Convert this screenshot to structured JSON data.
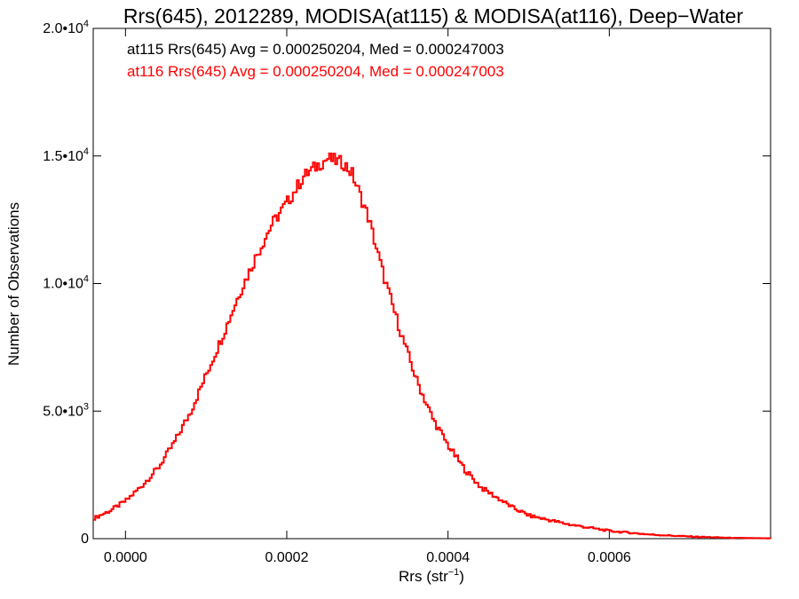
{
  "chart_data": {
    "type": "histogram-step",
    "title": "Rrs(645), 2012289, MODISA(at115) & MODISA(at116), Deep−Water",
    "xlabel_main": "Rrs (str",
    "xlabel_sup": "−1",
    "xlabel_end": ")",
    "ylabel": "Number of Observations",
    "xlim": [
      -4e-05,
      0.0008
    ],
    "ylim": [
      0,
      20000
    ],
    "x_ticks": [
      {
        "value": 0.0,
        "label": "0.0000"
      },
      {
        "value": 0.0002,
        "label": "0.0002"
      },
      {
        "value": 0.0004,
        "label": "0.0004"
      },
      {
        "value": 0.0006,
        "label": "0.0006"
      }
    ],
    "y_ticks": [
      {
        "value": 0,
        "label": "0",
        "sup": ""
      },
      {
        "value": 5000,
        "label": "5.0•10",
        "sup": "3"
      },
      {
        "value": 10000,
        "label": "1.0•10",
        "sup": "4"
      },
      {
        "value": 15000,
        "label": "1.5•10",
        "sup": "4"
      },
      {
        "value": 20000,
        "label": "2.0•10",
        "sup": "4"
      }
    ],
    "annotations": [
      {
        "text": "at115 Rrs(645) Avg = 0.000250204, Med = 0.000247003",
        "color": "#000000"
      },
      {
        "text": "at116 Rrs(645) Avg = 0.000250204, Med = 0.000247003",
        "color": "#ff0000"
      }
    ],
    "series": [
      {
        "color": "#ff0000",
        "x": [
          -4e-05,
          -2e-05,
          0.0,
          2e-05,
          4e-05,
          6e-05,
          8e-05,
          0.0001,
          0.00012,
          0.00014,
          0.00016,
          0.00018,
          0.0002,
          0.00022,
          0.00024,
          0.00025,
          0.00026,
          0.00027,
          0.00028,
          0.0003,
          0.00032,
          0.00034,
          0.00036,
          0.00038,
          0.0004,
          0.00042,
          0.00044,
          0.00046,
          0.00048,
          0.0005,
          0.00055,
          0.0006,
          0.00065,
          0.0007,
          0.00075,
          0.0008
        ],
        "y": [
          800,
          1100,
          1500,
          2100,
          2800,
          3800,
          5000,
          6500,
          8000,
          9600,
          11000,
          12300,
          13200,
          14200,
          14700,
          14900,
          14800,
          14700,
          14300,
          12600,
          10200,
          8100,
          6200,
          4700,
          3600,
          2700,
          2000,
          1600,
          1200,
          900,
          550,
          300,
          160,
          80,
          30,
          10
        ]
      }
    ]
  }
}
